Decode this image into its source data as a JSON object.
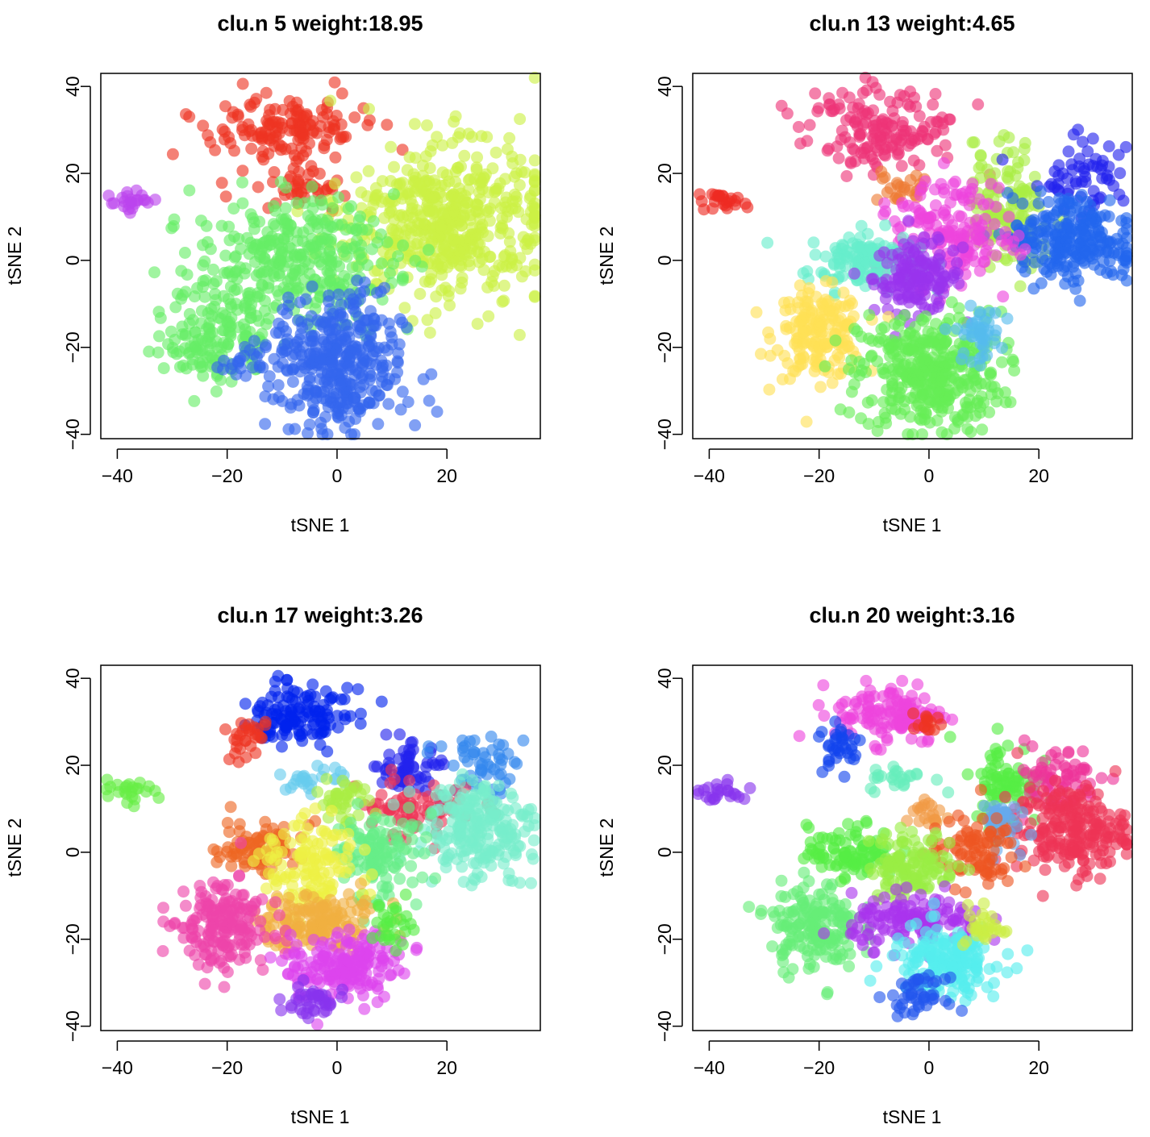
{
  "chart_data": [
    {
      "type": "scatter",
      "title": "clu.n 5 weight:18.95",
      "xlabel": "tSNE 1",
      "ylabel": "tSNE 2",
      "xlim": [
        -43,
        37
      ],
      "ylim": [
        -41,
        43
      ],
      "xticks": [
        -40,
        -20,
        0,
        20
      ],
      "yticks": [
        -40,
        -20,
        0,
        20,
        40
      ],
      "clusters": [
        {
          "color": "#bb44ee",
          "x": -37.5,
          "y": 14,
          "sx": 2.5,
          "sy": 1.3,
          "n": 24
        },
        {
          "color": "#ee3322",
          "x": -9,
          "y": 30,
          "sx": 6.5,
          "sy": 4.5,
          "n": 150
        },
        {
          "color": "#ee3322",
          "x": -6,
          "y": 16,
          "sx": 4.5,
          "sy": 2.5,
          "n": 40
        },
        {
          "color": "#ccf044",
          "x": 20,
          "y": 8,
          "sx": 9,
          "sy": 9,
          "n": 520
        },
        {
          "color": "#66ee66",
          "x": -8,
          "y": 0,
          "sx": 9,
          "sy": 7,
          "n": 330
        },
        {
          "color": "#66ee66",
          "x": -22,
          "y": -17,
          "sx": 4.5,
          "sy": 6,
          "n": 150
        },
        {
          "color": "#3366ee",
          "x": 0,
          "y": -24,
          "sx": 6,
          "sy": 8,
          "n": 380
        },
        {
          "color": "#3366ee",
          "x": -17,
          "y": -24,
          "sx": 2,
          "sy": 2,
          "n": 20
        }
      ]
    },
    {
      "type": "scatter",
      "title": "clu.n 13 weight:4.65",
      "xlabel": "tSNE 1",
      "ylabel": "tSNE 2",
      "xlim": [
        -43,
        37
      ],
      "ylim": [
        -41,
        43
      ],
      "xticks": [
        -40,
        -20,
        0,
        20
      ],
      "yticks": [
        -40,
        -20,
        0,
        20,
        40
      ],
      "clusters": [
        {
          "color": "#ee2a22",
          "x": -37.5,
          "y": 14,
          "sx": 2.5,
          "sy": 1.3,
          "n": 24
        },
        {
          "color": "#ee3377",
          "x": -9,
          "y": 30,
          "sx": 7,
          "sy": 5,
          "n": 160
        },
        {
          "color": "#ee7a33",
          "x": -5,
          "y": 16,
          "sx": 3,
          "sy": 2,
          "n": 25
        },
        {
          "color": "#aaee44",
          "x": 14,
          "y": 12,
          "sx": 4,
          "sy": 7,
          "n": 140
        },
        {
          "color": "#2222ee",
          "x": 27,
          "y": 20,
          "sx": 4,
          "sy": 4,
          "n": 60
        },
        {
          "color": "#2266ee",
          "x": 26,
          "y": 5,
          "sx": 5,
          "sy": 5,
          "n": 240
        },
        {
          "color": "#ee44dd",
          "x": 4,
          "y": 6,
          "sx": 6,
          "sy": 6,
          "n": 170
        },
        {
          "color": "#66eecc",
          "x": -12,
          "y": 0,
          "sx": 5,
          "sy": 3.5,
          "n": 140
        },
        {
          "color": "#9933ee",
          "x": -2,
          "y": -4,
          "sx": 4,
          "sy": 4,
          "n": 150
        },
        {
          "color": "#ffe055",
          "x": -20,
          "y": -17,
          "sx": 4,
          "sy": 5,
          "n": 180
        },
        {
          "color": "#66ee55",
          "x": 0,
          "y": -26,
          "sx": 6.5,
          "sy": 7,
          "n": 380
        },
        {
          "color": "#55bbee",
          "x": 9,
          "y": -17,
          "sx": 2,
          "sy": 3,
          "n": 45
        }
      ]
    },
    {
      "type": "scatter",
      "title": "clu.n 17 weight:3.26",
      "xlabel": "tSNE 1",
      "ylabel": "tSNE 2",
      "xlim": [
        -43,
        37
      ],
      "ylim": [
        -41,
        43
      ],
      "xticks": [
        -40,
        -20,
        0,
        20
      ],
      "yticks": [
        -40,
        -20,
        0,
        20,
        40
      ],
      "clusters": [
        {
          "color": "#66ee44",
          "x": -37.5,
          "y": 14,
          "sx": 2.5,
          "sy": 1.3,
          "n": 24
        },
        {
          "color": "#0022ee",
          "x": -7,
          "y": 32,
          "sx": 5,
          "sy": 3.5,
          "n": 130
        },
        {
          "color": "#ee3322",
          "x": -17,
          "y": 26,
          "sx": 2,
          "sy": 3,
          "n": 30
        },
        {
          "color": "#66ccee",
          "x": -5,
          "y": 17,
          "sx": 3,
          "sy": 1.5,
          "n": 25
        },
        {
          "color": "#2222ee",
          "x": 13,
          "y": 19,
          "sx": 3,
          "sy": 3,
          "n": 60
        },
        {
          "color": "#3388ee",
          "x": 26,
          "y": 19,
          "sx": 4,
          "sy": 4,
          "n": 55
        },
        {
          "color": "#ee3355",
          "x": 14,
          "y": 10,
          "sx": 5,
          "sy": 3.5,
          "n": 80
        },
        {
          "color": "#77eecc",
          "x": 26,
          "y": 5,
          "sx": 5,
          "sy": 5,
          "n": 220
        },
        {
          "color": "#aaee44",
          "x": 2,
          "y": 11,
          "sx": 3,
          "sy": 3,
          "n": 40
        },
        {
          "color": "#66ee88",
          "x": 7,
          "y": -1,
          "sx": 4,
          "sy": 5,
          "n": 120
        },
        {
          "color": "#ee6622",
          "x": -14,
          "y": 1,
          "sx": 4,
          "sy": 3,
          "n": 90
        },
        {
          "color": "#eef044",
          "x": -5,
          "y": -3,
          "sx": 4,
          "sy": 5,
          "n": 130
        },
        {
          "color": "#f0b040",
          "x": -4,
          "y": -16,
          "sx": 6,
          "sy": 3.5,
          "n": 160
        },
        {
          "color": "#ee44aa",
          "x": -21,
          "y": -17,
          "sx": 4,
          "sy": 5,
          "n": 180
        },
        {
          "color": "#dd44ee",
          "x": 2,
          "y": -26,
          "sx": 5,
          "sy": 4,
          "n": 180
        },
        {
          "color": "#8833ee",
          "x": -4,
          "y": -34,
          "sx": 2.5,
          "sy": 2,
          "n": 40
        },
        {
          "color": "#55ee44",
          "x": 10,
          "y": -18,
          "sx": 1.8,
          "sy": 2.5,
          "n": 30
        }
      ]
    },
    {
      "type": "scatter",
      "title": "clu.n 20 weight:3.16",
      "xlabel": "tSNE 1",
      "ylabel": "tSNE 2",
      "xlim": [
        -43,
        37
      ],
      "ylim": [
        -41,
        43
      ],
      "xticks": [
        -40,
        -20,
        0,
        20
      ],
      "yticks": [
        -40,
        -20,
        0,
        20,
        40
      ],
      "clusters": [
        {
          "color": "#8833ee",
          "x": -37.5,
          "y": 14,
          "sx": 2.5,
          "sy": 1.3,
          "n": 24
        },
        {
          "color": "#ee44dd",
          "x": -7,
          "y": 32,
          "sx": 5,
          "sy": 3.5,
          "n": 130
        },
        {
          "color": "#1144ee",
          "x": -16,
          "y": 25,
          "sx": 2,
          "sy": 3,
          "n": 35
        },
        {
          "color": "#ee3322",
          "x": 0,
          "y": 29,
          "sx": 1.5,
          "sy": 1.5,
          "n": 15
        },
        {
          "color": "#66eebb",
          "x": -5,
          "y": 17,
          "sx": 3,
          "sy": 1.5,
          "n": 25
        },
        {
          "color": "#55ee44",
          "x": 14,
          "y": 16,
          "sx": 3,
          "sy": 5,
          "n": 90
        },
        {
          "color": "#ee3399",
          "x": 23,
          "y": 17,
          "sx": 4,
          "sy": 4,
          "n": 70
        },
        {
          "color": "#ee3355",
          "x": 26,
          "y": 5,
          "sx": 5,
          "sy": 5,
          "n": 220
        },
        {
          "color": "#66aaee",
          "x": 12,
          "y": 7,
          "sx": 2,
          "sy": 3,
          "n": 35
        },
        {
          "color": "#f09944",
          "x": 0,
          "y": 9,
          "sx": 2,
          "sy": 2,
          "n": 20
        },
        {
          "color": "#ee5522",
          "x": 8,
          "y": 0,
          "sx": 4,
          "sy": 4,
          "n": 90
        },
        {
          "color": "#55ee44",
          "x": -14,
          "y": 0,
          "sx": 4,
          "sy": 3,
          "n": 100
        },
        {
          "color": "#99ee44",
          "x": -3,
          "y": -3,
          "sx": 4,
          "sy": 4,
          "n": 120
        },
        {
          "color": "#66ee77",
          "x": -21,
          "y": -17,
          "sx": 4,
          "sy": 5,
          "n": 170
        },
        {
          "color": "#aa33ee",
          "x": -2,
          "y": -16,
          "sx": 6,
          "sy": 3,
          "n": 140
        },
        {
          "color": "#55eeee",
          "x": 3,
          "y": -25,
          "sx": 5,
          "sy": 4,
          "n": 180
        },
        {
          "color": "#2255ee",
          "x": -2,
          "y": -33,
          "sx": 2.5,
          "sy": 2,
          "n": 45
        },
        {
          "color": "#ccee44",
          "x": 10,
          "y": -17,
          "sx": 1.8,
          "sy": 2.5,
          "n": 30
        }
      ]
    }
  ]
}
